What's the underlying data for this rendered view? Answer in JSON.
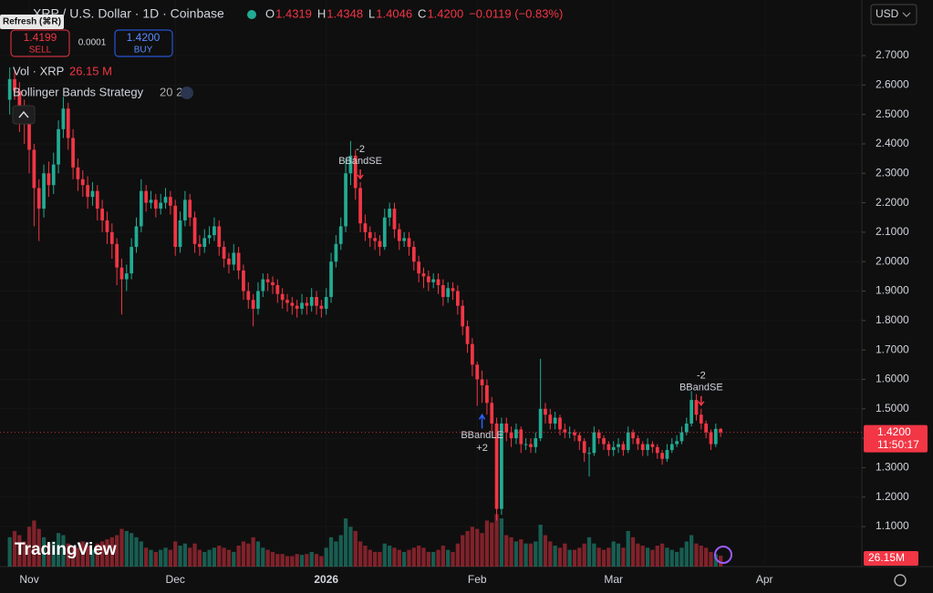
{
  "chart_data": {
    "type": "candlestick",
    "title": "XRP / U.S. Dollar · 1D · Coinbase",
    "tooltip": "Refresh (⌘R)",
    "ohlc_labels": [
      "O",
      "H",
      "L",
      "C"
    ],
    "header_values": [
      "1.4319",
      "1.4348",
      "1.4046",
      "1.4200"
    ],
    "change": "−0.0119 (−0.83%)",
    "sell_price": "1.4199",
    "sell_label": "SELL",
    "spread": "0.0001",
    "buy_price": "1.4200",
    "buy_label": "BUY",
    "volume_title": "Vol · XRP",
    "volume_label": "26.15 M",
    "indicator": "Bollinger Bands Strategy",
    "indicator_params": "20 2",
    "currency": "USD",
    "price_label": "1.4200",
    "countdown": "11:50:17",
    "volume_axis_label": "26.15M",
    "brand": "TradingView",
    "up_color": "#22ab94",
    "down_color": "#f23645",
    "open": [
      2.55,
      2.62,
      2.58,
      2.52,
      2.47,
      2.38,
      2.25,
      2.18,
      2.3,
      2.26,
      2.33,
      2.45,
      2.52,
      2.42,
      2.32,
      2.28,
      2.26,
      2.22,
      2.24,
      2.18,
      2.14,
      2.1,
      2.06,
      1.98,
      1.94,
      1.96,
      2.05,
      2.12,
      2.24,
      2.2,
      2.21,
      2.18,
      2.2,
      2.22,
      2.19,
      2.05,
      2.14,
      2.21,
      2.15,
      2.06,
      2.05,
      2.08,
      2.09,
      2.12,
      2.05,
      2.01,
      1.99,
      2.03,
      1.97,
      1.9,
      1.87,
      1.84,
      1.9,
      1.94,
      1.93,
      1.92,
      1.89,
      1.87,
      1.86,
      1.85,
      1.84,
      1.86,
      1.85,
      1.88,
      1.85,
      1.84,
      1.88,
      2.0,
      2.06,
      2.12,
      2.3,
      2.36,
      2.25,
      2.13,
      2.1,
      2.08,
      2.07,
      2.05,
      2.15,
      2.18,
      2.11,
      2.07,
      2.08,
      2.05,
      2.0,
      1.96,
      1.95,
      1.93,
      1.94,
      1.92,
      1.88,
      1.91,
      1.9,
      1.85,
      1.78,
      1.72,
      1.65,
      1.6,
      1.58,
      1.52,
      1.45,
      1.16,
      1.45,
      1.42,
      1.4,
      1.43,
      1.38,
      1.38,
      1.37,
      1.4,
      1.5,
      1.48,
      1.45,
      1.47,
      1.43,
      1.42,
      1.42,
      1.41,
      1.39,
      1.35,
      1.35,
      1.42,
      1.4,
      1.38,
      1.36,
      1.37,
      1.38,
      1.36,
      1.42,
      1.4,
      1.38,
      1.36,
      1.38,
      1.37,
      1.35,
      1.33,
      1.36,
      1.38,
      1.39,
      1.42,
      1.45,
      1.53,
      1.48,
      1.45,
      1.42,
      1.38,
      1.4319
    ],
    "high": [
      2.66,
      2.65,
      2.61,
      2.55,
      2.5,
      2.4,
      2.28,
      2.33,
      2.34,
      2.37,
      2.48,
      2.56,
      2.54,
      2.45,
      2.35,
      2.31,
      2.29,
      2.27,
      2.26,
      2.21,
      2.17,
      2.13,
      2.08,
      2.01,
      1.99,
      2.08,
      2.15,
      2.28,
      2.26,
      2.24,
      2.23,
      2.23,
      2.25,
      2.24,
      2.21,
      2.17,
      2.24,
      2.23,
      2.17,
      2.09,
      2.11,
      2.12,
      2.15,
      2.14,
      2.07,
      2.03,
      2.06,
      2.05,
      1.99,
      1.93,
      1.89,
      1.93,
      1.96,
      1.96,
      1.95,
      1.94,
      1.91,
      1.89,
      1.88,
      1.87,
      1.89,
      1.88,
      1.91,
      1.9,
      1.87,
      1.91,
      2.03,
      2.09,
      2.15,
      2.35,
      2.41,
      2.38,
      2.27,
      2.16,
      2.12,
      2.1,
      2.09,
      2.18,
      2.2,
      2.2,
      2.13,
      2.1,
      2.1,
      2.07,
      2.02,
      1.98,
      1.97,
      1.96,
      1.96,
      1.94,
      1.93,
      1.93,
      1.92,
      1.87,
      1.8,
      1.74,
      1.66,
      1.63,
      1.6,
      1.54,
      1.47,
      1.47,
      1.47,
      1.44,
      1.45,
      1.44,
      1.4,
      1.4,
      1.42,
      1.67,
      1.52,
      1.5,
      1.49,
      1.48,
      1.45,
      1.44,
      1.43,
      1.42,
      1.4,
      1.37,
      1.44,
      1.43,
      1.41,
      1.39,
      1.39,
      1.4,
      1.39,
      1.44,
      1.43,
      1.41,
      1.39,
      1.4,
      1.39,
      1.38,
      1.36,
      1.38,
      1.4,
      1.41,
      1.44,
      1.47,
      1.56,
      1.55,
      1.5,
      1.46,
      1.43,
      1.45,
      1.4348
    ],
    "low": [
      2.5,
      2.55,
      2.44,
      2.4,
      2.3,
      2.12,
      2.07,
      2.15,
      2.22,
      2.23,
      2.3,
      2.42,
      2.38,
      2.28,
      2.24,
      2.22,
      2.18,
      2.19,
      2.14,
      2.1,
      2.06,
      2.01,
      1.92,
      1.82,
      1.9,
      1.94,
      2.03,
      2.1,
      2.17,
      2.18,
      2.15,
      2.16,
      2.18,
      2.16,
      2.02,
      2.03,
      2.12,
      2.12,
      2.03,
      2.02,
      2.03,
      2.06,
      2.07,
      2.02,
      1.98,
      1.96,
      1.97,
      1.94,
      1.87,
      1.84,
      1.78,
      1.82,
      1.88,
      1.9,
      1.89,
      1.86,
      1.84,
      1.83,
      1.82,
      1.81,
      1.82,
      1.82,
      1.83,
      1.82,
      1.81,
      1.82,
      1.86,
      1.98,
      2.04,
      2.1,
      2.26,
      2.21,
      2.1,
      2.07,
      2.05,
      2.04,
      2.02,
      2.04,
      2.12,
      2.08,
      2.04,
      2.05,
      2.02,
      1.97,
      1.93,
      1.91,
      1.9,
      1.91,
      1.89,
      1.85,
      1.86,
      1.87,
      1.82,
      1.75,
      1.69,
      1.61,
      1.51,
      1.52,
      1.48,
      1.42,
      1.12,
      1.14,
      1.39,
      1.37,
      1.38,
      1.35,
      1.36,
      1.35,
      1.35,
      1.39,
      1.45,
      1.43,
      1.43,
      1.41,
      1.4,
      1.4,
      1.39,
      1.36,
      1.32,
      1.27,
      1.34,
      1.38,
      1.36,
      1.34,
      1.34,
      1.35,
      1.34,
      1.35,
      1.38,
      1.36,
      1.34,
      1.34,
      1.35,
      1.33,
      1.31,
      1.32,
      1.35,
      1.37,
      1.38,
      1.41,
      1.44,
      1.46,
      1.43,
      1.4,
      1.36,
      1.37,
      1.4046
    ],
    "close": [
      2.62,
      2.58,
      2.52,
      2.47,
      2.38,
      2.25,
      2.18,
      2.3,
      2.26,
      2.33,
      2.45,
      2.52,
      2.42,
      2.32,
      2.28,
      2.26,
      2.22,
      2.24,
      2.18,
      2.14,
      2.1,
      2.06,
      1.98,
      1.94,
      1.96,
      2.05,
      2.12,
      2.24,
      2.2,
      2.21,
      2.18,
      2.2,
      2.22,
      2.19,
      2.05,
      2.14,
      2.21,
      2.15,
      2.06,
      2.05,
      2.08,
      2.09,
      2.12,
      2.05,
      2.01,
      1.99,
      2.03,
      1.97,
      1.9,
      1.87,
      1.84,
      1.9,
      1.94,
      1.93,
      1.92,
      1.89,
      1.87,
      1.86,
      1.85,
      1.84,
      1.86,
      1.85,
      1.88,
      1.85,
      1.84,
      1.88,
      2.0,
      2.06,
      2.12,
      2.3,
      2.36,
      2.25,
      2.13,
      2.1,
      2.08,
      2.07,
      2.05,
      2.15,
      2.18,
      2.11,
      2.07,
      2.08,
      2.05,
      2.0,
      1.96,
      1.95,
      1.93,
      1.94,
      1.92,
      1.88,
      1.91,
      1.9,
      1.85,
      1.78,
      1.72,
      1.65,
      1.6,
      1.58,
      1.52,
      1.45,
      1.16,
      1.45,
      1.42,
      1.4,
      1.43,
      1.38,
      1.38,
      1.37,
      1.4,
      1.5,
      1.48,
      1.45,
      1.47,
      1.43,
      1.42,
      1.42,
      1.41,
      1.39,
      1.35,
      1.35,
      1.42,
      1.4,
      1.38,
      1.36,
      1.37,
      1.38,
      1.36,
      1.42,
      1.4,
      1.38,
      1.36,
      1.38,
      1.37,
      1.35,
      1.33,
      1.36,
      1.38,
      1.39,
      1.42,
      1.45,
      1.53,
      1.48,
      1.45,
      1.42,
      1.38,
      1.4319,
      1.42
    ],
    "volume": [
      70,
      85,
      75,
      60,
      95,
      110,
      90,
      70,
      55,
      60,
      80,
      75,
      55,
      50,
      45,
      60,
      50,
      40,
      55,
      60,
      65,
      70,
      75,
      90,
      85,
      80,
      70,
      60,
      45,
      40,
      35,
      40,
      45,
      40,
      60,
      50,
      55,
      45,
      55,
      40,
      35,
      40,
      45,
      50,
      45,
      40,
      35,
      50,
      60,
      55,
      70,
      60,
      45,
      40,
      35,
      30,
      30,
      25,
      25,
      30,
      28,
      30,
      35,
      30,
      25,
      45,
      70,
      60,
      75,
      115,
      95,
      85,
      60,
      50,
      40,
      35,
      35,
      55,
      50,
      45,
      40,
      35,
      40,
      45,
      50,
      45,
      35,
      35,
      40,
      50,
      40,
      35,
      55,
      75,
      85,
      95,
      90,
      80,
      110,
      105,
      125,
      115,
      75,
      70,
      60,
      65,
      55,
      55,
      60,
      100,
      75,
      60,
      50,
      45,
      55,
      40,
      40,
      45,
      55,
      70,
      55,
      45,
      40,
      45,
      60,
      55,
      45,
      85,
      70,
      55,
      50,
      45,
      40,
      50,
      55,
      45,
      40,
      35,
      45,
      60,
      75,
      55,
      50,
      45,
      35,
      30,
      26.15
    ],
    "signals": [
      {
        "candle": 72,
        "text": "BBandSE",
        "size": -2
      },
      {
        "candle": 97,
        "text": "BBandLE",
        "size": 2,
        "size_label": "+2"
      },
      {
        "candle": 142,
        "text": "BBandSE",
        "size": -2
      }
    ],
    "xlim": [
      -2,
      175
    ],
    "xticks": [
      {
        "value": 4,
        "label": "Nov"
      },
      {
        "value": 34,
        "label": "Dec"
      },
      {
        "value": 65,
        "label": "2026"
      },
      {
        "value": 96,
        "label": "Feb"
      },
      {
        "value": 124,
        "label": "Mar"
      },
      {
        "value": 155,
        "label": "Apr"
      }
    ],
    "ylim": [
      0.964,
      2.796
    ],
    "yticks": [
      {
        "value": 1.1,
        "label": "1.1000"
      },
      {
        "value": 1.2,
        "label": "1.2000"
      },
      {
        "value": 1.3,
        "label": "1.3000"
      },
      {
        "value": 1.4,
        "label": "1.4000"
      },
      {
        "value": 1.5,
        "label": "1.5000"
      },
      {
        "value": 1.6,
        "label": "1.6000"
      },
      {
        "value": 1.7,
        "label": "1.7000"
      },
      {
        "value": 1.8,
        "label": "1.8000"
      },
      {
        "value": 1.9,
        "label": "1.9000"
      },
      {
        "value": 2.0,
        "label": "2.0000"
      },
      {
        "value": 2.1,
        "label": "2.1000"
      },
      {
        "value": 2.2,
        "label": "2.2000"
      },
      {
        "value": 2.3,
        "label": "2.3000"
      },
      {
        "value": 2.4,
        "label": "2.4000"
      },
      {
        "value": 2.5,
        "label": "2.5000"
      },
      {
        "value": 2.6,
        "label": "2.6000"
      },
      {
        "value": 2.7,
        "label": "2.7000"
      }
    ]
  }
}
